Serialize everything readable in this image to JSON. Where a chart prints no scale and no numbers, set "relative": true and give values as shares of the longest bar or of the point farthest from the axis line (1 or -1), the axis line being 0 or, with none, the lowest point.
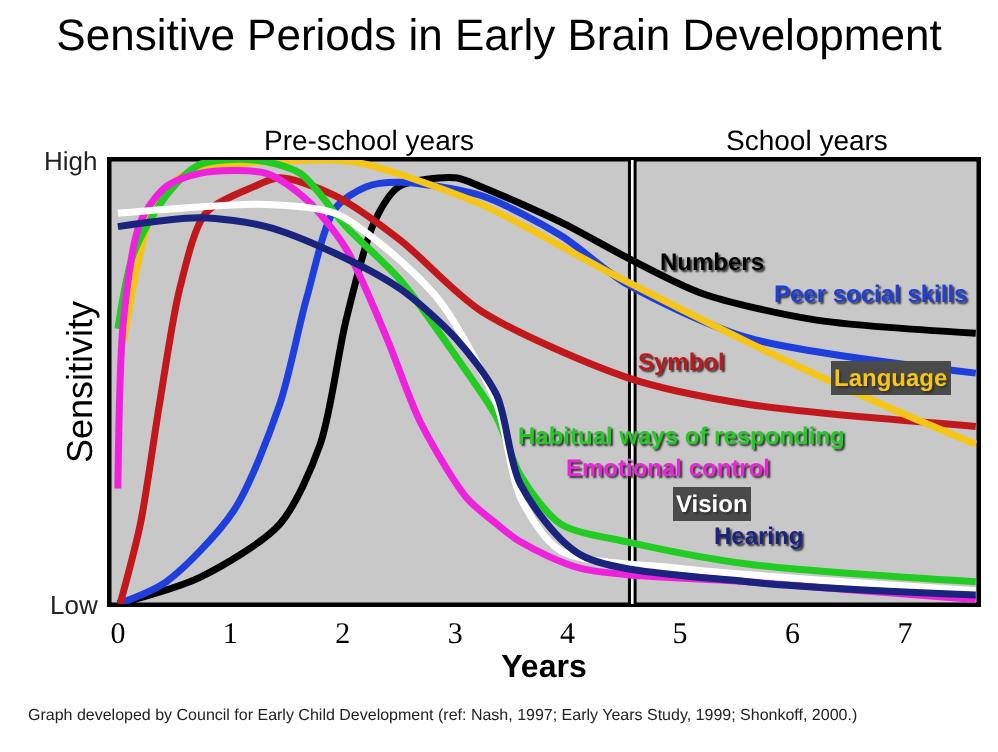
{
  "chart_data": {
    "type": "line",
    "title": "Sensitive Periods in Early Brain Development",
    "xlabel": "Years",
    "ylabel": "Sensitivity",
    "xlim": [
      -0.07,
      7.65
    ],
    "xticks": [
      0,
      1,
      2,
      3,
      4,
      5,
      6,
      7
    ],
    "relative": true,
    "grid": false,
    "legend": false,
    "marker": "none",
    "line_style": "solid",
    "bands": [
      {
        "axis": "x",
        "from": -0.07,
        "to": 4.55,
        "label": "Pre-school years",
        "color": "#c8c8c8"
      },
      {
        "axis": "x",
        "from": 4.6,
        "to": 7.65,
        "label": "School years",
        "color": "#c8c8c8"
      }
    ],
    "series": [
      {
        "name": "Numbers",
        "color": "#000000",
        "x": [
          0,
          0.73,
          1.44,
          1.8,
          2.03,
          2.28,
          2.5,
          3.0,
          3.23,
          3.94,
          4.53,
          5.19,
          6.2,
          7.63
        ],
        "values": [
          0,
          0.06,
          0.18,
          0.36,
          0.64,
          0.86,
          0.94,
          0.96,
          0.94,
          0.86,
          0.78,
          0.7,
          0.64,
          0.61
        ]
      },
      {
        "name": "Peer social skills",
        "color": "#1f3fdc",
        "x": [
          0,
          0.43,
          1.03,
          1.44,
          1.68,
          1.93,
          2.21,
          2.5,
          3.23,
          3.94,
          4.53,
          5.6,
          7.63
        ],
        "values": [
          0,
          0.05,
          0.21,
          0.45,
          0.69,
          0.89,
          0.94,
          0.95,
          0.92,
          0.83,
          0.72,
          0.6,
          0.52
        ]
      },
      {
        "name": "Symbol",
        "color": "#c0181c",
        "x": [
          0.02,
          0.2,
          0.37,
          0.55,
          0.78,
          1.21,
          1.44,
          1.93,
          2.51,
          3.23,
          4.53,
          5.6,
          7.63
        ],
        "values": [
          0,
          0.18,
          0.45,
          0.71,
          0.88,
          0.94,
          0.96,
          0.92,
          0.82,
          0.66,
          0.51,
          0.45,
          0.4
        ]
      },
      {
        "name": "Language",
        "color": "#f5c518",
        "x": [
          0.05,
          0.32,
          0.61,
          1.9,
          2.21,
          3.23,
          4.42,
          5.6,
          6.79,
          7.63
        ],
        "values": [
          0.59,
          0.89,
          0.97,
          1.0,
          0.99,
          0.9,
          0.74,
          0.59,
          0.45,
          0.36
        ]
      },
      {
        "name": "Habitual ways of responding",
        "color": "#22cc22",
        "x": [
          0,
          0.14,
          0.43,
          0.73,
          1.21,
          1.62,
          2.03,
          2.51,
          3.0,
          3.37,
          3.58,
          3.94,
          4.53,
          5.6,
          7.63
        ],
        "values": [
          0.62,
          0.79,
          0.92,
          0.99,
          1.0,
          0.97,
          0.85,
          0.73,
          0.56,
          0.42,
          0.29,
          0.18,
          0.14,
          0.09,
          0.05
        ]
      },
      {
        "name": "Emotional control",
        "color": "#ee22dd",
        "x": [
          0,
          0.05,
          0.2,
          0.43,
          0.73,
          1.32,
          1.68,
          2.03,
          2.39,
          2.69,
          3.1,
          3.37,
          3.58,
          4.12,
          5.6,
          7.63
        ],
        "values": [
          0.26,
          0.64,
          0.86,
          0.94,
          0.97,
          0.97,
          0.91,
          0.8,
          0.6,
          0.41,
          0.24,
          0.18,
          0.14,
          0.08,
          0.05,
          0.01
        ]
      },
      {
        "name": "Vision",
        "color": "#ffffff",
        "x": [
          0,
          1.32,
          1.93,
          2.39,
          2.87,
          3.37,
          3.58,
          3.94,
          5.0,
          7.63
        ],
        "values": [
          0.88,
          0.9,
          0.88,
          0.8,
          0.68,
          0.45,
          0.24,
          0.12,
          0.08,
          0.03
        ]
      },
      {
        "name": "Hearing",
        "color": "#1a237e",
        "x": [
          0,
          0.73,
          1.32,
          1.93,
          2.51,
          3.0,
          3.37,
          3.58,
          4.12,
          5.6,
          7.63
        ],
        "values": [
          0.85,
          0.87,
          0.85,
          0.79,
          0.71,
          0.6,
          0.47,
          0.27,
          0.11,
          0.05,
          0.02
        ]
      }
    ],
    "annotations": [
      "High",
      "Low",
      "Graph developed by Council for Early Child Development (ref: Nash, 1997; Early Years Study, 1999; Shonkoff, 2000.)"
    ]
  }
}
